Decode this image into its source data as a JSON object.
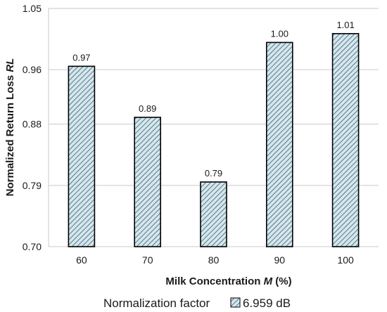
{
  "chart_data": {
    "type": "bar",
    "xlabel": "Milk Concentration",
    "xlabel_var": "M",
    "xlabel_unit": " (%)",
    "ylabel": "Normalized Return Loss ",
    "ylabel_var": "RL",
    "categories": [
      "60",
      "70",
      "80",
      "90",
      "100"
    ],
    "values": [
      0.965,
      0.89,
      0.795,
      1.0,
      1.013
    ],
    "value_labels": [
      "0.97",
      "0.89",
      "0.79",
      "1.00",
      "1.01"
    ],
    "ylim": [
      0.7,
      1.05
    ],
    "yticks": [
      0.7,
      0.79,
      0.88,
      0.96,
      1.05
    ],
    "ytick_labels": [
      "0.70",
      "0.79",
      "0.88",
      "0.96",
      "1.05"
    ],
    "grid": "horizontal",
    "legend": {
      "position": "bottom",
      "title": "Normalization factor",
      "entry": "6.959 dB"
    },
    "colors": {
      "bar_fill": "#d6e6ec",
      "hatch": "#2f5f72",
      "bar_edge": "#000000",
      "grid": "#c9c9c9"
    }
  }
}
